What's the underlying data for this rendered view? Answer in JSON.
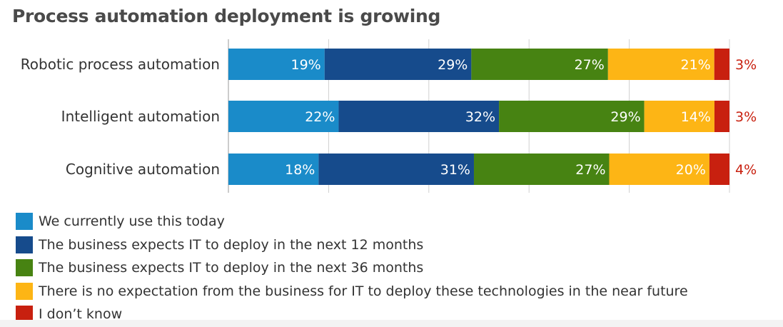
{
  "chart_data": {
    "type": "bar",
    "orientation": "horizontal",
    "stacked": true,
    "title": "Process automation deployment is growing",
    "categories": [
      "Robotic process automation",
      "Intelligent automation",
      "Cognitive automation"
    ],
    "series": [
      {
        "name": "We currently use this today",
        "color": "#1a8bc9",
        "values": [
          19,
          22,
          18
        ],
        "labels": [
          "19%",
          "22%",
          "18%"
        ]
      },
      {
        "name": "The business expects IT to deploy in the next 12 months",
        "color": "#164b8c",
        "values": [
          29,
          32,
          31
        ],
        "labels": [
          "29%",
          "32%",
          "31%"
        ]
      },
      {
        "name": "The business expects IT to deploy in the next 36 months",
        "color": "#478312",
        "values": [
          27,
          29,
          27
        ],
        "labels": [
          "27%",
          "29%",
          "27%"
        ]
      },
      {
        "name": "There is no expectation from the business for IT to deploy these technologies in the near future",
        "color": "#fdb515",
        "values": [
          21,
          14,
          20
        ],
        "labels": [
          "21%",
          "14%",
          "20%"
        ]
      },
      {
        "name": "I don’t know",
        "color": "#c8200f",
        "values": [
          3,
          3,
          4
        ],
        "labels": [
          "3%",
          "3%",
          "4%"
        ]
      }
    ],
    "xlim": [
      0,
      100
    ],
    "grid": true,
    "legend_position": "bottom-left"
  }
}
